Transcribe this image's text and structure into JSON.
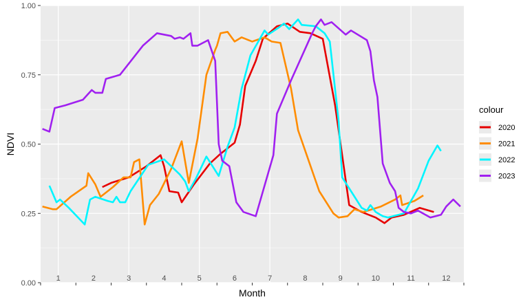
{
  "chart_data": {
    "type": "line",
    "title": "",
    "xlabel": "Month",
    "ylabel": "NDVI",
    "xlim": [
      0.5,
      12.5
    ],
    "ylim": [
      0,
      1
    ],
    "x_tick_labels": [
      "1",
      "2",
      "3",
      "4",
      "5",
      "6",
      "7",
      "8",
      "9",
      "10",
      "11",
      "12"
    ],
    "y_ticks": [
      0,
      0.25,
      0.5,
      0.75,
      1
    ],
    "y_tick_labels": [
      "0.00",
      "0.25",
      "0.50",
      "0.75",
      "1.00"
    ],
    "grid": true,
    "legend": {
      "title": "colour",
      "position": "right"
    },
    "series": [
      {
        "name": "2020",
        "color": "#e60000",
        "points": [
          [
            2.25,
            0.345
          ],
          [
            2.5,
            0.36
          ],
          [
            3.0,
            0.38
          ],
          [
            3.5,
            0.42
          ],
          [
            3.9,
            0.46
          ],
          [
            4.0,
            0.42
          ],
          [
            4.15,
            0.33
          ],
          [
            4.4,
            0.325
          ],
          [
            4.5,
            0.29
          ],
          [
            4.85,
            0.355
          ],
          [
            5.3,
            0.43
          ],
          [
            5.6,
            0.465
          ],
          [
            6.0,
            0.505
          ],
          [
            6.15,
            0.57
          ],
          [
            6.3,
            0.71
          ],
          [
            6.6,
            0.8
          ],
          [
            6.8,
            0.88
          ],
          [
            7.2,
            0.925
          ],
          [
            7.5,
            0.935
          ],
          [
            7.85,
            0.905
          ],
          [
            8.15,
            0.9
          ],
          [
            8.5,
            0.88
          ],
          [
            8.85,
            0.64
          ],
          [
            9.25,
            0.28
          ],
          [
            9.6,
            0.255
          ],
          [
            10.0,
            0.235
          ],
          [
            10.25,
            0.215
          ],
          [
            10.45,
            0.235
          ],
          [
            10.8,
            0.245
          ],
          [
            11.25,
            0.27
          ],
          [
            11.65,
            0.255
          ]
        ]
      },
      {
        "name": "2021",
        "color": "#ff8c00",
        "points": [
          [
            0.55,
            0.275
          ],
          [
            0.85,
            0.265
          ],
          [
            0.95,
            0.265
          ],
          [
            1.35,
            0.31
          ],
          [
            1.8,
            0.35
          ],
          [
            1.85,
            0.395
          ],
          [
            2.05,
            0.355
          ],
          [
            2.2,
            0.31
          ],
          [
            2.55,
            0.345
          ],
          [
            2.85,
            0.38
          ],
          [
            3.05,
            0.38
          ],
          [
            3.15,
            0.435
          ],
          [
            3.3,
            0.445
          ],
          [
            3.45,
            0.21
          ],
          [
            3.6,
            0.28
          ],
          [
            3.85,
            0.32
          ],
          [
            4.2,
            0.41
          ],
          [
            4.5,
            0.51
          ],
          [
            4.7,
            0.36
          ],
          [
            4.95,
            0.52
          ],
          [
            5.2,
            0.75
          ],
          [
            5.45,
            0.84
          ],
          [
            5.5,
            0.855
          ],
          [
            5.6,
            0.9
          ],
          [
            5.8,
            0.905
          ],
          [
            6.0,
            0.87
          ],
          [
            6.2,
            0.885
          ],
          [
            6.5,
            0.87
          ],
          [
            6.85,
            0.885
          ],
          [
            7.05,
            0.87
          ],
          [
            7.3,
            0.865
          ],
          [
            7.6,
            0.7
          ],
          [
            7.8,
            0.55
          ],
          [
            8.4,
            0.33
          ],
          [
            8.8,
            0.25
          ],
          [
            8.95,
            0.235
          ],
          [
            9.2,
            0.24
          ],
          [
            9.4,
            0.265
          ],
          [
            9.65,
            0.255
          ],
          [
            10.15,
            0.275
          ],
          [
            10.55,
            0.3
          ],
          [
            10.7,
            0.315
          ],
          [
            10.75,
            0.28
          ],
          [
            11.1,
            0.295
          ],
          [
            11.35,
            0.315
          ]
        ]
      },
      {
        "name": "2022",
        "color": "#00f5ff",
        "points": [
          [
            0.75,
            0.35
          ],
          [
            0.95,
            0.29
          ],
          [
            1.05,
            0.3
          ],
          [
            1.3,
            0.27
          ],
          [
            1.75,
            0.21
          ],
          [
            1.9,
            0.3
          ],
          [
            2.05,
            0.31
          ],
          [
            2.4,
            0.295
          ],
          [
            2.55,
            0.29
          ],
          [
            2.65,
            0.31
          ],
          [
            2.75,
            0.29
          ],
          [
            2.9,
            0.29
          ],
          [
            3.05,
            0.33
          ],
          [
            3.55,
            0.425
          ],
          [
            4.0,
            0.445
          ],
          [
            4.45,
            0.39
          ],
          [
            4.6,
            0.365
          ],
          [
            4.7,
            0.33
          ],
          [
            4.9,
            0.375
          ],
          [
            5.2,
            0.455
          ],
          [
            5.55,
            0.385
          ],
          [
            5.8,
            0.49
          ],
          [
            6.0,
            0.56
          ],
          [
            6.2,
            0.7
          ],
          [
            6.45,
            0.82
          ],
          [
            6.65,
            0.865
          ],
          [
            6.85,
            0.91
          ],
          [
            6.95,
            0.895
          ],
          [
            7.25,
            0.92
          ],
          [
            7.4,
            0.935
          ],
          [
            7.55,
            0.915
          ],
          [
            7.8,
            0.95
          ],
          [
            7.9,
            0.93
          ],
          [
            8.3,
            0.925
          ],
          [
            8.55,
            0.9
          ],
          [
            8.7,
            0.87
          ],
          [
            8.95,
            0.58
          ],
          [
            9.05,
            0.38
          ],
          [
            9.35,
            0.32
          ],
          [
            9.6,
            0.27
          ],
          [
            9.75,
            0.26
          ],
          [
            9.85,
            0.28
          ],
          [
            10.0,
            0.255
          ],
          [
            10.2,
            0.24
          ],
          [
            10.35,
            0.235
          ],
          [
            10.8,
            0.25
          ],
          [
            11.2,
            0.34
          ],
          [
            11.5,
            0.44
          ],
          [
            11.75,
            0.495
          ],
          [
            11.85,
            0.475
          ]
        ]
      },
      {
        "name": "2023",
        "color": "#a020f0",
        "points": [
          [
            0.55,
            0.555
          ],
          [
            0.75,
            0.545
          ],
          [
            0.9,
            0.63
          ],
          [
            1.2,
            0.64
          ],
          [
            1.7,
            0.66
          ],
          [
            1.95,
            0.695
          ],
          [
            2.05,
            0.685
          ],
          [
            2.25,
            0.685
          ],
          [
            2.35,
            0.735
          ],
          [
            2.75,
            0.75
          ],
          [
            3.4,
            0.855
          ],
          [
            3.8,
            0.9
          ],
          [
            4.2,
            0.89
          ],
          [
            4.3,
            0.88
          ],
          [
            4.45,
            0.885
          ],
          [
            4.55,
            0.88
          ],
          [
            4.75,
            0.9
          ],
          [
            4.8,
            0.855
          ],
          [
            4.95,
            0.855
          ],
          [
            5.25,
            0.875
          ],
          [
            5.45,
            0.8
          ],
          [
            5.55,
            0.5
          ],
          [
            5.65,
            0.44
          ],
          [
            5.85,
            0.42
          ],
          [
            6.05,
            0.29
          ],
          [
            6.25,
            0.255
          ],
          [
            6.6,
            0.24
          ],
          [
            7.1,
            0.46
          ],
          [
            7.2,
            0.61
          ],
          [
            7.6,
            0.73
          ],
          [
            8.2,
            0.9
          ],
          [
            8.3,
            0.925
          ],
          [
            8.45,
            0.95
          ],
          [
            8.55,
            0.93
          ],
          [
            8.75,
            0.94
          ],
          [
            9.15,
            0.895
          ],
          [
            9.3,
            0.91
          ],
          [
            9.75,
            0.875
          ],
          [
            9.85,
            0.835
          ],
          [
            9.95,
            0.73
          ],
          [
            10.05,
            0.67
          ],
          [
            10.2,
            0.43
          ],
          [
            10.4,
            0.36
          ],
          [
            10.55,
            0.33
          ],
          [
            10.65,
            0.27
          ],
          [
            10.8,
            0.255
          ],
          [
            11.0,
            0.25
          ],
          [
            11.2,
            0.26
          ],
          [
            11.55,
            0.235
          ],
          [
            11.85,
            0.245
          ],
          [
            12.0,
            0.275
          ],
          [
            12.2,
            0.3
          ],
          [
            12.4,
            0.275
          ]
        ]
      }
    ]
  }
}
